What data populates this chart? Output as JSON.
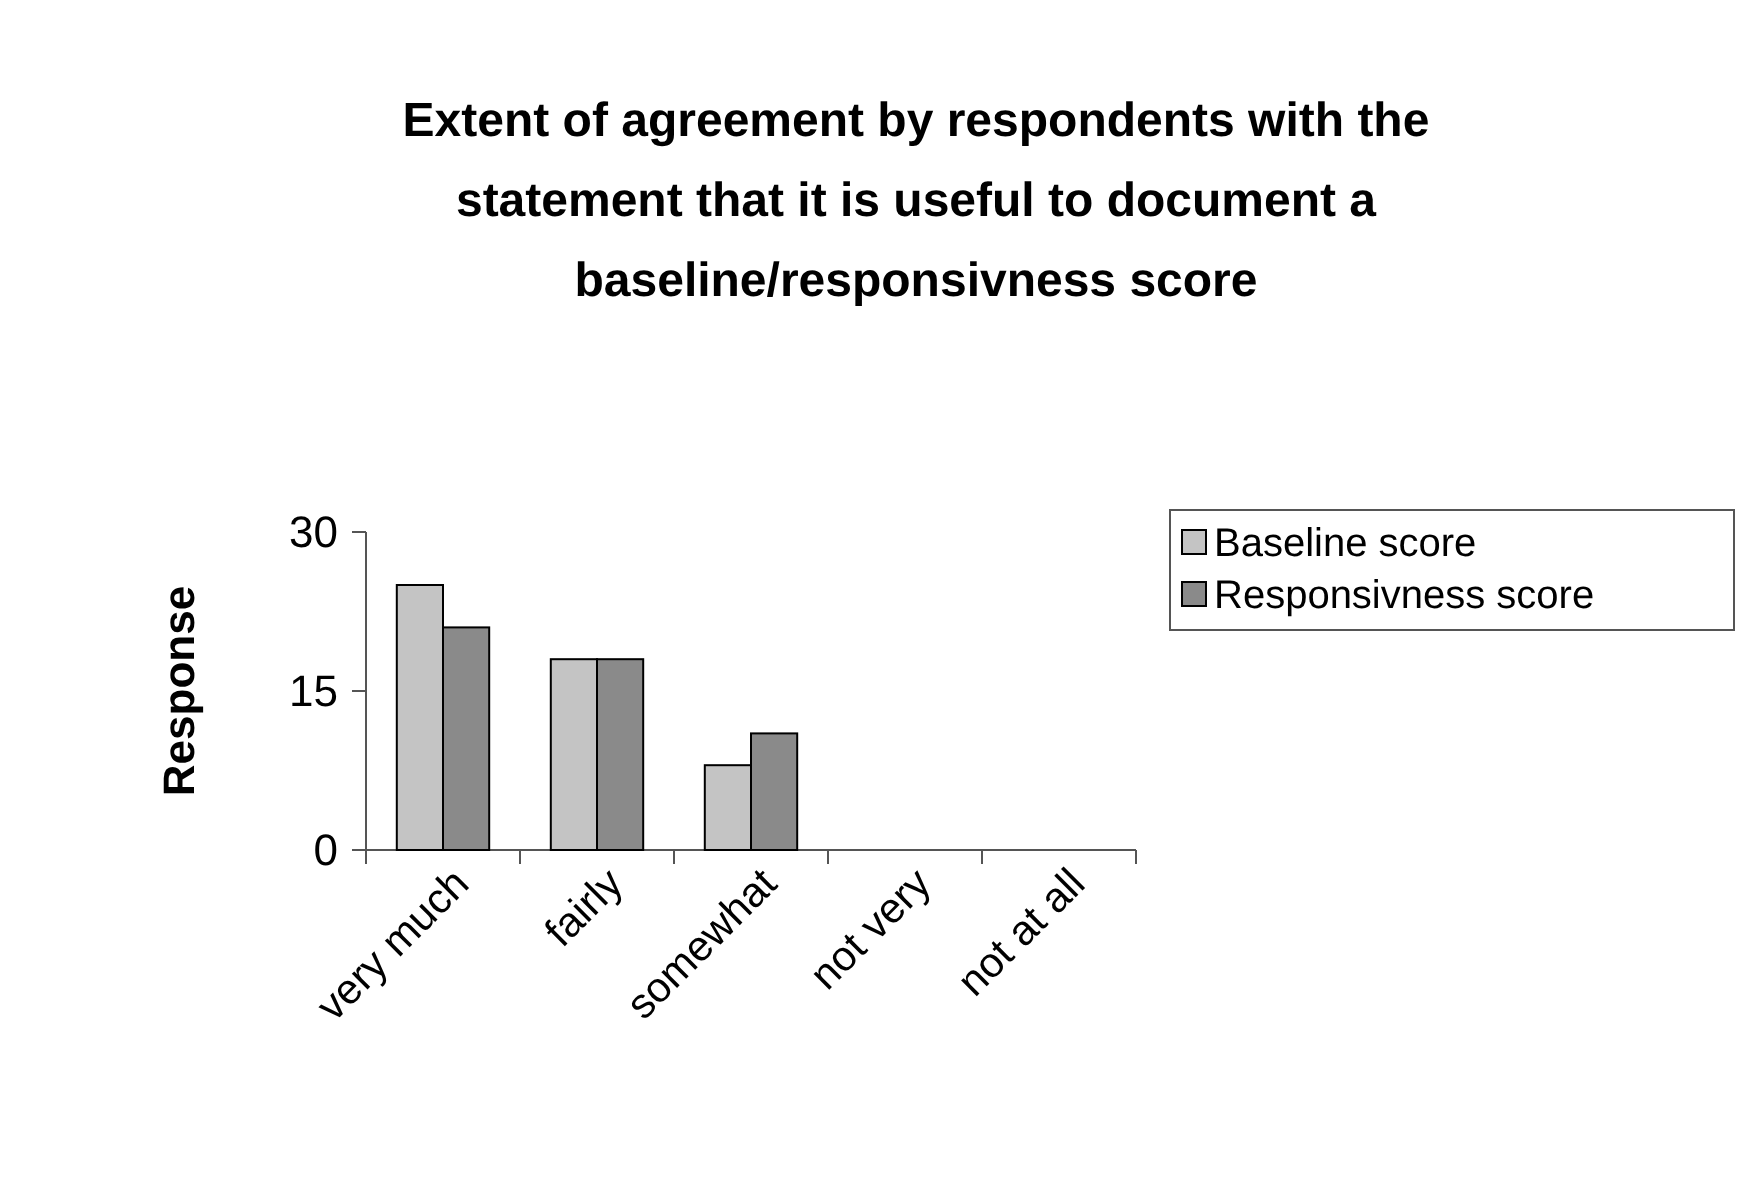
{
  "chart_data": {
    "type": "bar",
    "title": "Extent of agreement by respondents with the statement that it is useful to document a baseline/responsivness score",
    "ylabel": "Response",
    "categories": [
      "very much",
      "fairly",
      "somewhat",
      "not very",
      "not at all"
    ],
    "series": [
      {
        "name": "Baseline score",
        "color": "#c4c4c4",
        "values": [
          25,
          18,
          8,
          0,
          0
        ]
      },
      {
        "name": "Responsivness score",
        "color": "#8a8a8a",
        "values": [
          21,
          18,
          11,
          0,
          0
        ]
      }
    ],
    "ylim": [
      0,
      30
    ],
    "yticks": [
      0,
      15,
      30
    ],
    "grid": false,
    "legend": "right"
  }
}
